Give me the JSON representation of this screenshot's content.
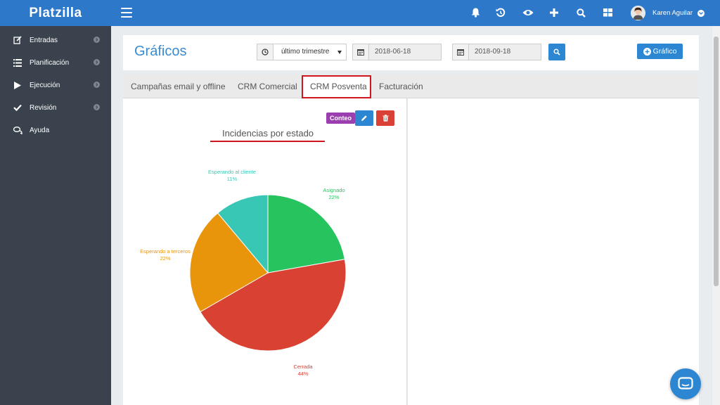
{
  "brand": "Platzilla",
  "sidebar": {
    "items": [
      {
        "label": "Entradas",
        "icon": "edit-icon"
      },
      {
        "label": "Planificación",
        "icon": "list-icon"
      },
      {
        "label": "Ejecución",
        "icon": "play-icon"
      },
      {
        "label": "Revisión",
        "icon": "check-icon"
      },
      {
        "label": "Ayuda",
        "icon": "chat-bubbles-icon"
      }
    ]
  },
  "topbar": {
    "user_name": "Karen Aguilar",
    "icons": [
      "bell-icon",
      "history-icon",
      "eye-icon",
      "plus-icon",
      "search-icon",
      "grid-icon"
    ]
  },
  "header": {
    "title": "Gráficos",
    "period_select": "último trimestre",
    "date_from": "2018-06-18",
    "date_to": "2018-09-18",
    "add_button": "Gráfico"
  },
  "tabs": [
    {
      "label": "Campañas email y offline"
    },
    {
      "label": "CRM Comercial"
    },
    {
      "label": "CRM Posventa",
      "active": true
    },
    {
      "label": "Facturación"
    }
  ],
  "widget": {
    "badge": "Conteo"
  },
  "chart_data": {
    "type": "pie",
    "title": "Incidencias por estado",
    "slices": [
      {
        "label": "Asignado",
        "value": 22,
        "display": "22%",
        "color": "#27c35f"
      },
      {
        "label": "Cerrada",
        "value": 44,
        "display": "44%",
        "color": "#d94233"
      },
      {
        "label": "Esperando a terceros",
        "value": 22,
        "display": "22%",
        "color": "#e8950b"
      },
      {
        "label": "Esperando al cliente",
        "value": 11,
        "display": "11%",
        "color": "#38c6b5"
      }
    ]
  }
}
